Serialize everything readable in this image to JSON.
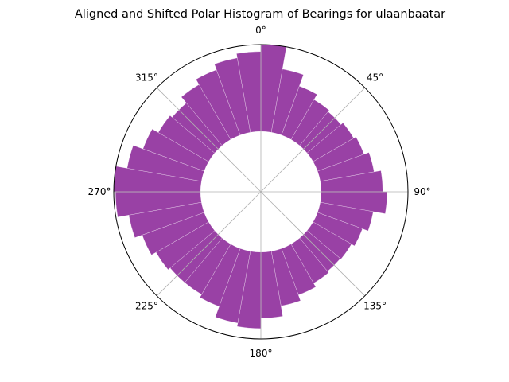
{
  "chart_data": {
    "type": "polar-bar",
    "title": "Aligned and Shifted Polar Histogram of Bearings for ulaanbaatar",
    "theta_zero": "N",
    "theta_direction": "clockwise",
    "theta_tick_labels": [
      "0°",
      "45°",
      "90°",
      "135°",
      "180°",
      "225°",
      "270°",
      "315°"
    ],
    "bin_width_deg": 10,
    "bar_color": "#8e2c9b",
    "grid": true,
    "radius_range": [
      0,
      1
    ],
    "inner_hole_fraction": 0.41,
    "bins": [
      {
        "theta": 5,
        "value": 1.0
      },
      {
        "theta": 15,
        "value": 0.74
      },
      {
        "theta": 25,
        "value": 0.6
      },
      {
        "theta": 35,
        "value": 0.53
      },
      {
        "theta": 45,
        "value": 0.51
      },
      {
        "theta": 55,
        "value": 0.54
      },
      {
        "theta": 65,
        "value": 0.57
      },
      {
        "theta": 75,
        "value": 0.63
      },
      {
        "theta": 85,
        "value": 0.71
      },
      {
        "theta": 95,
        "value": 0.76
      },
      {
        "theta": 105,
        "value": 0.62
      },
      {
        "theta": 115,
        "value": 0.55
      },
      {
        "theta": 125,
        "value": 0.51
      },
      {
        "theta": 135,
        "value": 0.5
      },
      {
        "theta": 145,
        "value": 0.52
      },
      {
        "theta": 155,
        "value": 0.57
      },
      {
        "theta": 165,
        "value": 0.64
      },
      {
        "theta": 175,
        "value": 0.76
      },
      {
        "theta": 185,
        "value": 0.88
      },
      {
        "theta": 195,
        "value": 0.84
      },
      {
        "theta": 205,
        "value": 0.71
      },
      {
        "theta": 215,
        "value": 0.67
      },
      {
        "theta": 225,
        "value": 0.67
      },
      {
        "theta": 235,
        "value": 0.7
      },
      {
        "theta": 245,
        "value": 0.76
      },
      {
        "theta": 255,
        "value": 0.85
      },
      {
        "theta": 265,
        "value": 0.98
      },
      {
        "theta": 275,
        "value": 1.0
      },
      {
        "theta": 285,
        "value": 0.87
      },
      {
        "theta": 295,
        "value": 0.75
      },
      {
        "theta": 305,
        "value": 0.67
      },
      {
        "theta": 315,
        "value": 0.64
      },
      {
        "theta": 325,
        "value": 0.73
      },
      {
        "theta": 335,
        "value": 0.8
      },
      {
        "theta": 345,
        "value": 0.87
      },
      {
        "theta": 355,
        "value": 0.92
      }
    ]
  }
}
